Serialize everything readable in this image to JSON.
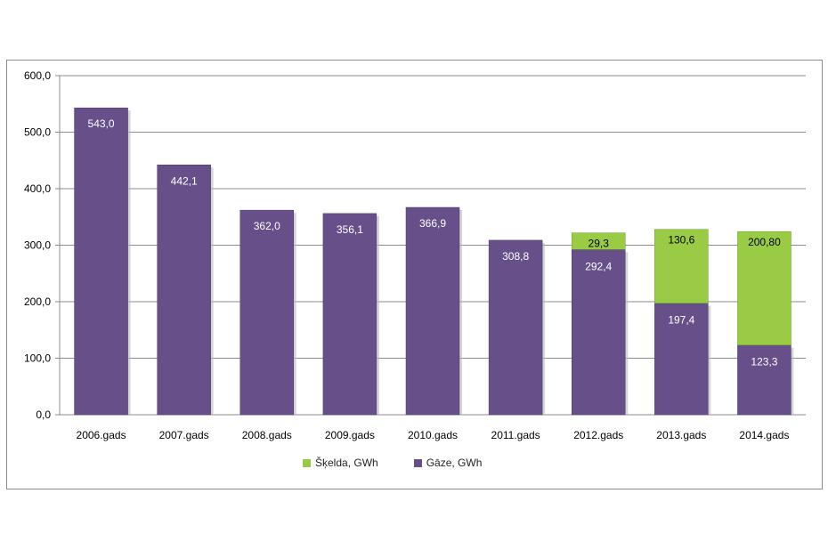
{
  "chart_data": {
    "type": "bar",
    "stacked": true,
    "categories": [
      "2006.gads",
      "2007.gads",
      "2008.gads",
      "2009.gads",
      "2010.gads",
      "2011.gads",
      "2012.gads",
      "2013.gads",
      "2014.gads"
    ],
    "series": [
      {
        "name": "Gāze, GWh",
        "color": "#67508a",
        "values": [
          543.0,
          442.1,
          362.0,
          356.1,
          366.9,
          308.8,
          292.4,
          197.4,
          123.3
        ],
        "labels": [
          "543,0",
          "442,1",
          "362,0",
          "356,1",
          "366,9",
          "308,8",
          "292,4",
          "197,4",
          "123,3"
        ]
      },
      {
        "name": "Šķelda, GWh",
        "color": "#99cc44",
        "values": [
          null,
          null,
          null,
          null,
          null,
          null,
          29.3,
          130.6,
          200.8
        ],
        "labels": [
          "",
          "",
          "",
          "",
          "",
          "",
          "29,3",
          "130,6",
          "200,80"
        ]
      }
    ],
    "ylim": [
      0,
      600
    ],
    "yticks": [
      0,
      100,
      200,
      300,
      400,
      500,
      600
    ],
    "ytick_labels": [
      "0,0",
      "100,0",
      "200,0",
      "300,0",
      "400,0",
      "500,0",
      "600,0"
    ],
    "grid": true,
    "legend_position": "bottom",
    "legend_order": [
      "Šķelda, GWh",
      "Gāze, GWh"
    ]
  }
}
